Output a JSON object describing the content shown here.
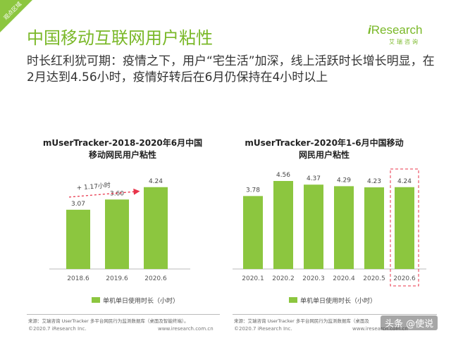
{
  "corner_tag": "观点区域",
  "title": "中国移动互联网用户粘性",
  "logo": {
    "i": "i",
    "main": "Research",
    "sub": "艾瑞咨询"
  },
  "headline": "时长红利犹可期：疫情之下，用户“宅生活”加深，线上活跃时长增长明显，在2月达到4.56小时，疫情好转后在6月仍保持在4小时以上",
  "colors": {
    "bar": "#8cc63f",
    "title": "#7ab828",
    "annotation": "#e8334a"
  },
  "chart_data": [
    {
      "type": "bar",
      "title_line1": "mUserTracker-2018-2020年6月中国",
      "title_line2": "移动网民用户粘性",
      "categories": [
        "2018.6",
        "2019.6",
        "2020.6"
      ],
      "values": [
        3.07,
        3.6,
        4.24
      ],
      "labels": [
        "3.07",
        "3.60",
        "4.24"
      ],
      "legend": "单机单日使用时长（小时）",
      "annotation": "+ 1.17小时",
      "grid": false
    },
    {
      "type": "bar",
      "title_line1": "mUserTracker-2020年1-6月中国移动",
      "title_line2": "网民用户粘性",
      "categories": [
        "2020.1",
        "2020.2",
        "2020.3",
        "2020.4",
        "2020.5",
        "2020.6"
      ],
      "values": [
        3.78,
        4.56,
        4.37,
        4.29,
        4.23,
        4.24
      ],
      "labels": [
        "3.78",
        "4.56",
        "4.37",
        "4.29",
        "4.23",
        "4.24"
      ],
      "legend": "单机单日使用时长（小时）",
      "highlight": "2020.6",
      "grid": false
    }
  ],
  "source_left": "来源：艾瑞咨询 UserTracker 多平台网民行为监测数据库（桌面及智能终端）。",
  "source_right": "来源：艾瑞咨询 UserTracker 多平台网民行为监测数据库（桌面及",
  "footer_copyright": "©2020.7 iResearch Inc.",
  "footer_url": "www.iresearch.com.cn",
  "watermark": "头条 @使说"
}
